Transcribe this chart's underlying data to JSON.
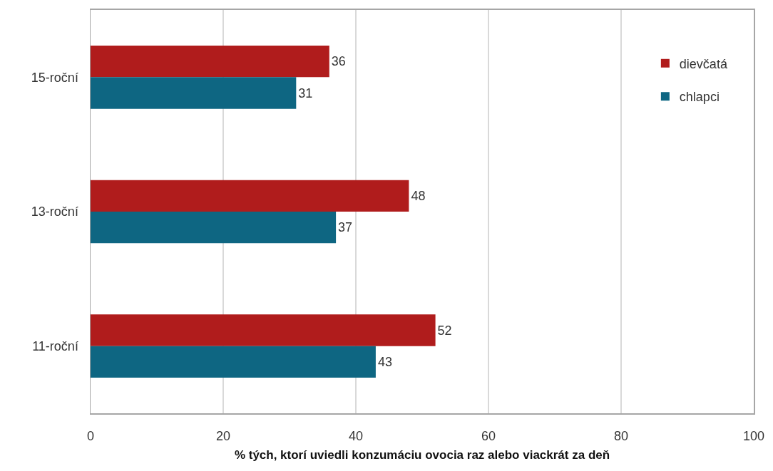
{
  "chart_data": {
    "type": "bar",
    "orientation": "horizontal",
    "xlabel": "% tých, ktorí uviedli konzumáciu ovocia raz alebo viackrát za deň",
    "categories": [
      "15-roční",
      "13-roční",
      "11-roční"
    ],
    "series": [
      {
        "name": "dievčatá",
        "color": "#b01c1c",
        "values": [
          36,
          48,
          52
        ]
      },
      {
        "name": "chlapci",
        "color": "#0e6682",
        "values": [
          31,
          37,
          43
        ]
      }
    ],
    "xlim": [
      0,
      100
    ],
    "xticks": [
      0,
      20,
      40,
      60,
      80,
      100
    ],
    "grid": "x",
    "legend": "top right",
    "data_labels": true
  }
}
